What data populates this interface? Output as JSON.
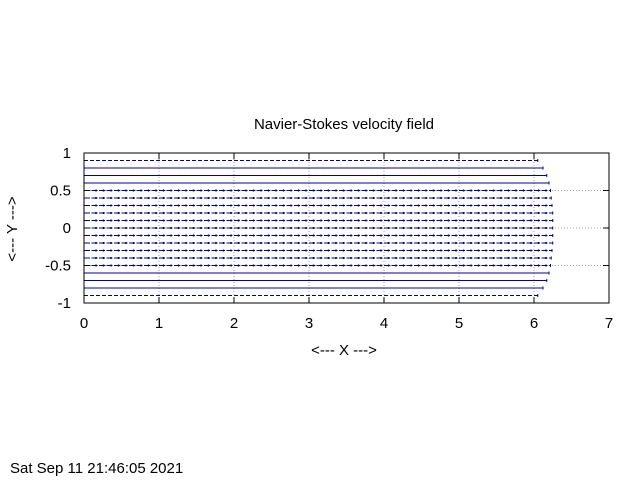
{
  "chart_data": {
    "type": "line",
    "title": "Navier-Stokes velocity field",
    "xlabel": "<--- X --->",
    "ylabel": "<--- Y --->",
    "xlim": [
      0,
      7
    ],
    "ylim": [
      -1,
      1
    ],
    "xticks": [
      "0",
      "1",
      "2",
      "3",
      "4",
      "5",
      "6",
      "7"
    ],
    "yticks": [
      "1",
      "0.5",
      "0",
      "-0.5",
      "-1"
    ],
    "grid": true,
    "series_color": "#0000a0",
    "description_streamlines": {
      "y_values": [
        -0.9,
        -0.8,
        -0.7,
        -0.6,
        -0.5,
        -0.4,
        -0.3,
        -0.2,
        -0.1,
        0.0,
        0.1,
        0.2,
        0.3,
        0.4,
        0.5,
        0.6,
        0.7,
        0.8,
        0.9
      ],
      "x_end": [
        6.05,
        6.12,
        6.17,
        6.2,
        6.22,
        6.23,
        6.24,
        6.25,
        6.25,
        6.25,
        6.25,
        6.25,
        6.24,
        6.23,
        6.22,
        6.2,
        6.17,
        6.12,
        6.05
      ]
    }
  },
  "footer": {
    "timestamp": "Sat Sep 11 21:46:05 2021"
  }
}
